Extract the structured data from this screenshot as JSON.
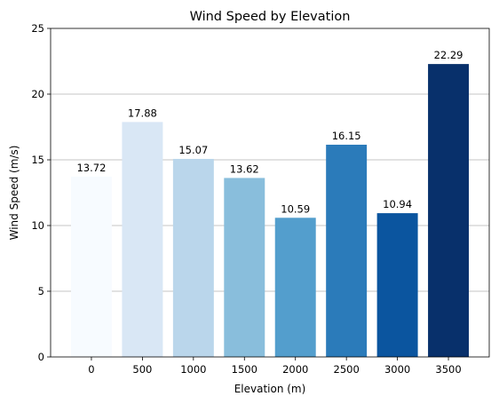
{
  "chart_data": {
    "type": "bar",
    "title": "Wind Speed by Elevation",
    "xlabel": "Elevation (m)",
    "ylabel": "Wind Speed (m/s)",
    "categories": [
      "0",
      "500",
      "1000",
      "1500",
      "2000",
      "2500",
      "3000",
      "3500"
    ],
    "values": [
      13.72,
      17.88,
      15.07,
      13.62,
      10.59,
      16.15,
      10.94,
      22.29
    ],
    "data_labels": [
      "13.72",
      "17.88",
      "15.07",
      "13.62",
      "10.59",
      "16.15",
      "10.94",
      "22.29"
    ],
    "ylim": [
      0,
      25
    ],
    "yticks": [
      0,
      5,
      10,
      15,
      20,
      25
    ],
    "ytick_labels": [
      "0",
      "5",
      "10",
      "15",
      "20",
      "25"
    ],
    "grid": "y-axis only",
    "colors": [
      "#f7fbff",
      "#d9e7f5",
      "#bad6eb",
      "#89bedc",
      "#539ecd",
      "#2b7bba",
      "#0b559f",
      "#08306b"
    ]
  }
}
